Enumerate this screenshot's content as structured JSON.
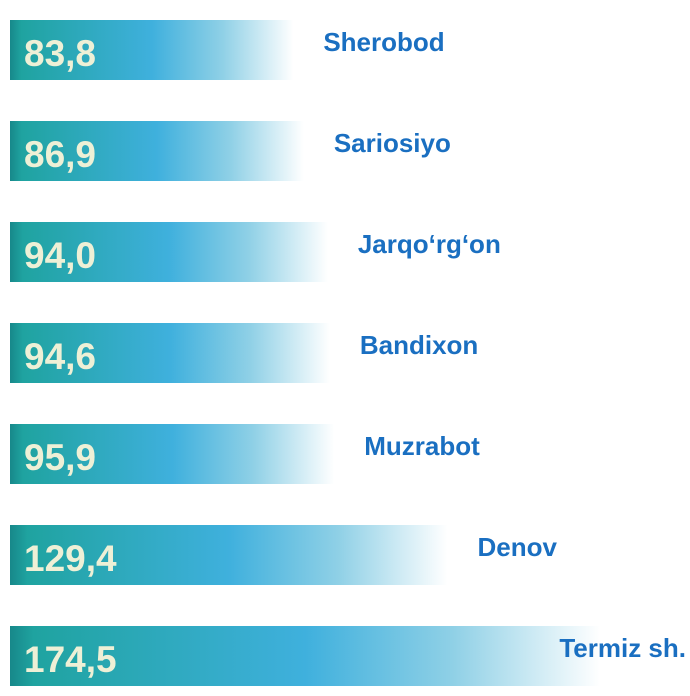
{
  "chart_data": {
    "type": "bar",
    "orientation": "horizontal",
    "categories": [
      "Sherobod",
      "Sariosiyo",
      "Jarqo‘rg‘on",
      "Bandixon",
      "Muzrabot",
      "Denov",
      "Termiz sh."
    ],
    "values": [
      83.8,
      86.9,
      94.0,
      94.6,
      95.9,
      129.4,
      174.5
    ],
    "value_labels": [
      "83,8",
      "86,9",
      "94,0",
      "94,6",
      "95,9",
      "129,4",
      "174,5"
    ],
    "color": "#1c9a9c"
  }
}
